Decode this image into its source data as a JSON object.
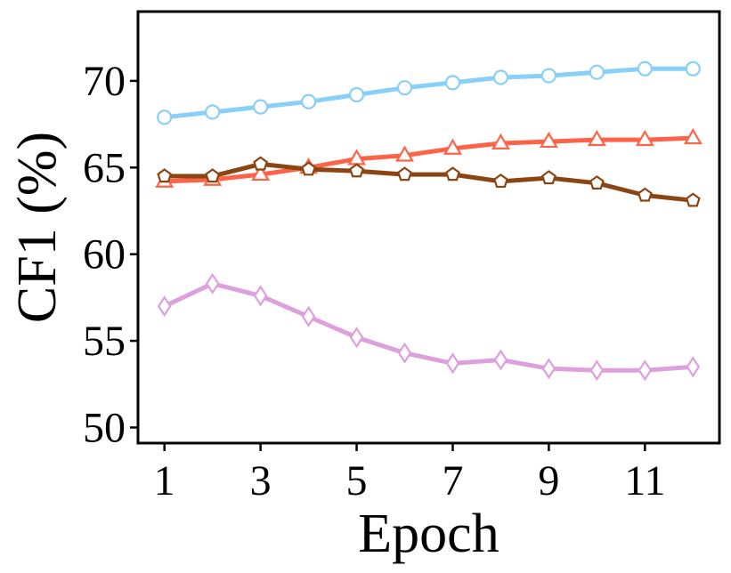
{
  "chart_data": {
    "type": "line",
    "xlabel": "Epoch",
    "ylabel": "CF1 (%)",
    "xlim": [
      0.45,
      12.55
    ],
    "ylim": [
      49.1,
      74.0
    ],
    "x_ticks": [
      1,
      3,
      5,
      7,
      9,
      11
    ],
    "y_ticks": [
      50,
      55,
      60,
      65,
      70
    ],
    "grid": false,
    "x": [
      1,
      2,
      3,
      4,
      5,
      6,
      7,
      8,
      9,
      10,
      11,
      12
    ],
    "series": [
      {
        "marker": "circle",
        "color": "#89CFF8",
        "values": [
          67.9,
          68.2,
          68.5,
          68.8,
          69.2,
          69.6,
          69.9,
          70.2,
          70.3,
          70.5,
          70.7,
          70.7
        ]
      },
      {
        "marker": "triangle",
        "color": "#FF6347",
        "values": [
          64.2,
          64.3,
          64.6,
          65.0,
          65.5,
          65.7,
          66.1,
          66.4,
          66.5,
          66.6,
          66.6,
          66.7
        ]
      },
      {
        "marker": "pentagon",
        "color": "#8B4513",
        "values": [
          64.5,
          64.5,
          65.2,
          64.9,
          64.8,
          64.6,
          64.6,
          64.2,
          64.4,
          64.1,
          63.4,
          63.1
        ]
      },
      {
        "marker": "diamond",
        "color": "#DDA0DD",
        "values": [
          57.0,
          58.3,
          57.6,
          56.4,
          55.2,
          54.3,
          53.7,
          53.9,
          53.4,
          53.3,
          53.3,
          53.5
        ]
      }
    ]
  }
}
